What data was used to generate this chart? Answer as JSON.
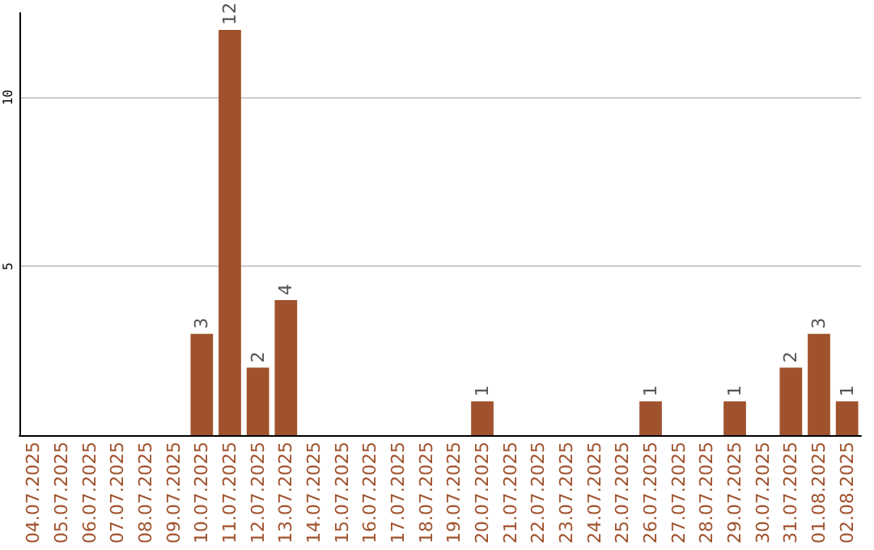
{
  "chart_data": {
    "type": "bar",
    "categories": [
      "04.07.2025",
      "05.07.2025",
      "06.07.2025",
      "07.07.2025",
      "08.07.2025",
      "09.07.2025",
      "10.07.2025",
      "11.07.2025",
      "12.07.2025",
      "13.07.2025",
      "14.07.2025",
      "15.07.2025",
      "16.07.2025",
      "17.07.2025",
      "18.07.2025",
      "19.07.2025",
      "20.07.2025",
      "21.07.2025",
      "22.07.2025",
      "23.07.2025",
      "24.07.2025",
      "25.07.2025",
      "26.07.2025",
      "27.07.2025",
      "28.07.2025",
      "29.07.2025",
      "30.07.2025",
      "31.07.2025",
      "01.08.2025",
      "02.08.2025"
    ],
    "values": [
      0,
      0,
      0,
      0,
      0,
      0,
      3,
      12,
      2,
      4,
      0,
      0,
      0,
      0,
      0,
      0,
      1,
      0,
      0,
      0,
      0,
      0,
      1,
      0,
      0,
      1,
      0,
      2,
      3,
      1
    ],
    "value_labels": [
      null,
      null,
      null,
      null,
      null,
      null,
      "3",
      "12",
      "2",
      "4",
      null,
      null,
      null,
      null,
      null,
      null,
      "1",
      null,
      null,
      null,
      null,
      null,
      "1",
      null,
      null,
      "1",
      null,
      "2",
      "3",
      "1"
    ],
    "color": "#a0522d",
    "ylim": [
      0,
      12.5
    ],
    "yticks": [
      {
        "value": 0,
        "label": null
      },
      5,
      10
    ],
    "grid": "y"
  }
}
